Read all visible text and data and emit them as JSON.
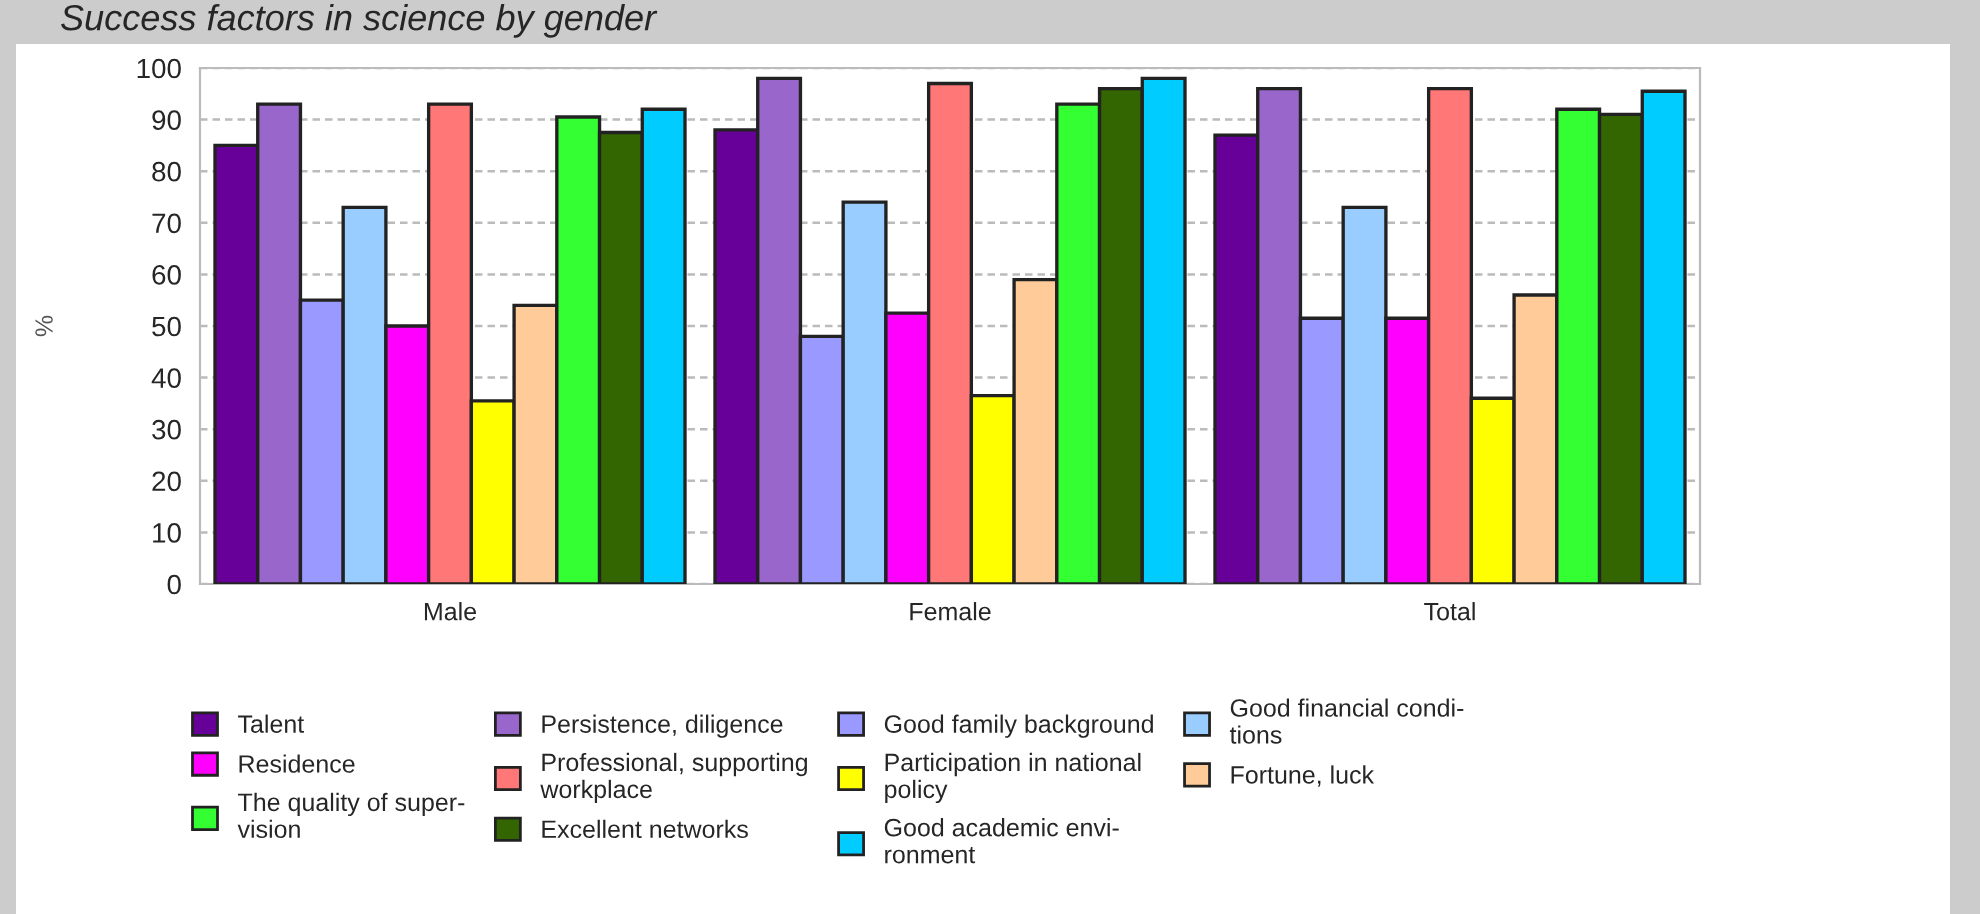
{
  "chart_data": {
    "type": "bar",
    "title": "Success factors in science by gender",
    "ylabel": "%",
    "categories": [
      "Male",
      "Female",
      "Total"
    ],
    "series": [
      {
        "name": "Talent",
        "color": "#660099",
        "values": [
          85,
          88,
          87
        ]
      },
      {
        "name": "Persistence, diligence",
        "color": "#9966cc",
        "values": [
          93,
          98,
          96
        ]
      },
      {
        "name": "Good family background",
        "color": "#9999ff",
        "values": [
          55,
          48,
          51.5
        ]
      },
      {
        "name": "Good financial condi-\ntions",
        "color": "#99ccff",
        "values": [
          73,
          74,
          73
        ]
      },
      {
        "name": "Residence",
        "color": "#ff00ff",
        "values": [
          50,
          52.5,
          51.5
        ]
      },
      {
        "name": "Professional, supporting\nworkplace",
        "color": "#ff7777",
        "values": [
          93,
          97,
          96
        ]
      },
      {
        "name": "Participation in national\npolicy",
        "color": "#ffff00",
        "values": [
          35.5,
          36.5,
          36
        ]
      },
      {
        "name": "Fortune, luck",
        "color": "#ffcc99",
        "values": [
          54,
          59,
          56
        ]
      },
      {
        "name": "The quality of super-\nvision",
        "color": "#33ff33",
        "values": [
          90.5,
          93,
          92
        ]
      },
      {
        "name": "Excellent networks",
        "color": "#336600",
        "values": [
          87.5,
          96,
          91
        ]
      },
      {
        "name": "Good academic envi-\nronment",
        "color": "#00ccff",
        "values": [
          92,
          98,
          95.5
        ]
      }
    ],
    "ylim": [
      0,
      100
    ],
    "yticks": [
      0,
      10,
      20,
      30,
      40,
      50,
      60,
      70,
      80,
      90,
      100
    ],
    "grid": "y",
    "legend": "bottom"
  }
}
